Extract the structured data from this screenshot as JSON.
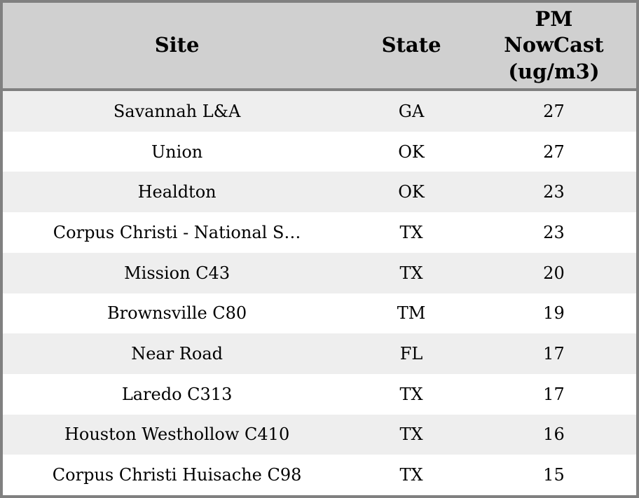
{
  "table": {
    "columns": [
      {
        "id": "site",
        "label": "Site"
      },
      {
        "id": "state",
        "label": "State"
      },
      {
        "id": "pm_nowcast",
        "label": "PM\nNowCast\n(ug/m3)"
      }
    ],
    "rows": [
      [
        "Savannah L&A",
        "GA",
        "27"
      ],
      [
        "Union",
        "OK",
        "27"
      ],
      [
        "Healdton",
        "OK",
        "23"
      ],
      [
        "Corpus Christi - National S…",
        "TX",
        "23"
      ],
      [
        "Mission C43",
        "TX",
        "20"
      ],
      [
        "Brownsville C80",
        "TM",
        "19"
      ],
      [
        "Near Road",
        "FL",
        "17"
      ],
      [
        "Laredo C313",
        "TX",
        "17"
      ],
      [
        "Houston Westhollow C410",
        "TX",
        "16"
      ],
      [
        "Corpus Christi Huisache C98",
        "TX",
        "15"
      ]
    ]
  },
  "colors": {
    "header_bg": "#d0d0d0",
    "row_odd_bg": "#eeeeee",
    "row_even_bg": "#ffffff",
    "border": "#808080",
    "text": "#000000"
  }
}
